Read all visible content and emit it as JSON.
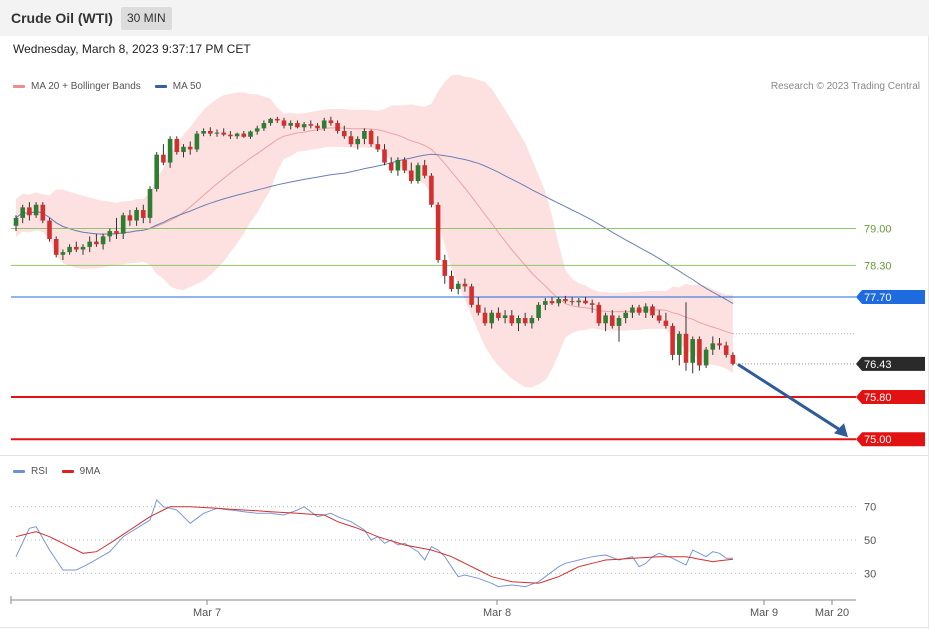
{
  "header": {
    "title": "Crude Oil (WTI)",
    "interval": "30 MIN"
  },
  "timestamp": "Wednesday, March 8, 2023 9:37:17 PM CET",
  "legend_main": [
    {
      "label": "MA 20 + Bollinger Bands",
      "color": "#f28b8b"
    },
    {
      "label": "MA 50",
      "color": "#3b5f9a"
    }
  ],
  "legend_rsi": [
    {
      "label": "RSI",
      "color": "#6e8fd6"
    },
    {
      "label": "9MA",
      "color": "#e02020"
    }
  ],
  "credit": "Research © 2023 Trading Central",
  "chart_data": [
    {
      "type": "candlestick",
      "ylim": [
        74.7,
        81.4
      ],
      "current_price": "76.43",
      "levels": [
        {
          "value": 79.0,
          "label": "79.00",
          "kind": "line",
          "color": "#8fc46a"
        },
        {
          "value": 78.3,
          "label": "78.30",
          "kind": "line",
          "color": "#8fc46a"
        },
        {
          "value": 77.7,
          "label": "77.70",
          "kind": "tag",
          "color": "#1e6be0"
        },
        {
          "value": 75.8,
          "label": "75.80",
          "kind": "tag",
          "color": "#e31212"
        },
        {
          "value": 75.0,
          "label": "75.00",
          "kind": "tag",
          "color": "#e31212"
        }
      ],
      "projection": {
        "from_price": 76.42,
        "to_price": 75.0,
        "color": "#2f5b9a"
      },
      "x_ticks": [
        "Mar 7",
        "Mar 8",
        "Mar 9",
        "Mar 20"
      ],
      "candles": [
        [
          79.05,
          79.25,
          78.95,
          79.2
        ],
        [
          79.2,
          79.45,
          79.1,
          79.4
        ],
        [
          79.4,
          79.5,
          79.15,
          79.25
        ],
        [
          79.25,
          79.5,
          79.2,
          79.45
        ],
        [
          79.45,
          79.5,
          79.1,
          79.15
        ],
        [
          79.15,
          79.2,
          78.75,
          78.8
        ],
        [
          78.8,
          78.85,
          78.45,
          78.5
        ],
        [
          78.5,
          78.6,
          78.4,
          78.55
        ],
        [
          78.55,
          78.7,
          78.5,
          78.65
        ],
        [
          78.65,
          78.75,
          78.55,
          78.6
        ],
        [
          78.6,
          78.7,
          78.5,
          78.65
        ],
        [
          78.65,
          78.85,
          78.55,
          78.75
        ],
        [
          78.75,
          78.9,
          78.65,
          78.7
        ],
        [
          78.7,
          78.9,
          78.6,
          78.85
        ],
        [
          78.85,
          79.0,
          78.75,
          78.95
        ],
        [
          78.95,
          79.2,
          78.8,
          78.9
        ],
        [
          78.9,
          79.3,
          78.8,
          79.25
        ],
        [
          79.25,
          79.35,
          79.05,
          79.15
        ],
        [
          79.15,
          79.4,
          79.05,
          79.35
        ],
        [
          79.35,
          79.45,
          79.1,
          79.2
        ],
        [
          79.2,
          79.8,
          79.1,
          79.75
        ],
        [
          79.75,
          80.45,
          79.7,
          80.4
        ],
        [
          80.4,
          80.6,
          80.2,
          80.25
        ],
        [
          80.25,
          80.75,
          80.15,
          80.7
        ],
        [
          80.7,
          80.75,
          80.4,
          80.45
        ],
        [
          80.45,
          80.6,
          80.35,
          80.55
        ],
        [
          80.55,
          80.65,
          80.4,
          80.5
        ],
        [
          80.5,
          80.85,
          80.45,
          80.8
        ],
        [
          80.8,
          80.9,
          80.75,
          80.85
        ],
        [
          80.85,
          80.92,
          80.75,
          80.8
        ],
        [
          80.8,
          80.88,
          80.74,
          80.82
        ],
        [
          80.82,
          80.9,
          80.75,
          80.78
        ],
        [
          80.78,
          80.85,
          80.7,
          80.75
        ],
        [
          80.75,
          80.82,
          80.7,
          80.8
        ],
        [
          80.8,
          80.85,
          80.72,
          80.74
        ],
        [
          80.74,
          80.86,
          80.7,
          80.84
        ],
        [
          80.84,
          80.95,
          80.78,
          80.9
        ],
        [
          80.9,
          81.05,
          80.85,
          81.0
        ],
        [
          81.0,
          81.1,
          80.95,
          81.08
        ],
        [
          81.08,
          81.12,
          81.0,
          81.05
        ],
        [
          81.05,
          81.1,
          80.9,
          80.95
        ],
        [
          80.95,
          81.05,
          80.88,
          81.0
        ],
        [
          81.0,
          81.05,
          80.9,
          80.92
        ],
        [
          80.92,
          81.02,
          80.85,
          80.98
        ],
        [
          80.98,
          81.05,
          80.9,
          80.95
        ],
        [
          80.95,
          81.0,
          80.85,
          80.9
        ],
        [
          80.9,
          81.1,
          80.85,
          81.05
        ],
        [
          81.05,
          81.12,
          80.95,
          81.0
        ],
        [
          81.0,
          81.05,
          80.8,
          80.85
        ],
        [
          80.85,
          80.95,
          80.7,
          80.75
        ],
        [
          80.75,
          80.85,
          80.55,
          80.6
        ],
        [
          80.6,
          80.75,
          80.5,
          80.7
        ],
        [
          80.7,
          80.9,
          80.6,
          80.85
        ],
        [
          80.85,
          80.88,
          80.55,
          80.6
        ],
        [
          80.6,
          80.75,
          80.45,
          80.5
        ],
        [
          80.5,
          80.6,
          80.2,
          80.25
        ],
        [
          80.25,
          80.35,
          80.05,
          80.1
        ],
        [
          80.1,
          80.35,
          80.0,
          80.3
        ],
        [
          80.3,
          80.35,
          80.05,
          80.1
        ],
        [
          80.1,
          80.25,
          79.85,
          79.9
        ],
        [
          79.9,
          80.25,
          79.85,
          80.2
        ],
        [
          80.2,
          80.3,
          79.95,
          80.0
        ],
        [
          80.0,
          80.05,
          79.4,
          79.45
        ],
        [
          79.45,
          79.5,
          78.35,
          78.4
        ],
        [
          78.4,
          78.5,
          77.95,
          78.1
        ],
        [
          78.1,
          78.2,
          77.8,
          77.85
        ],
        [
          77.85,
          78.0,
          77.75,
          77.95
        ],
        [
          77.95,
          78.05,
          77.8,
          77.9
        ],
        [
          77.9,
          77.95,
          77.5,
          77.55
        ],
        [
          77.55,
          77.7,
          77.35,
          77.4
        ],
        [
          77.4,
          77.5,
          77.15,
          77.2
        ],
        [
          77.2,
          77.45,
          77.1,
          77.4
        ],
        [
          77.4,
          77.5,
          77.25,
          77.3
        ],
        [
          77.3,
          77.45,
          77.2,
          77.35
        ],
        [
          77.35,
          77.45,
          77.15,
          77.2
        ],
        [
          77.2,
          77.35,
          77.05,
          77.3
        ],
        [
          77.3,
          77.4,
          77.15,
          77.2
        ],
        [
          77.2,
          77.35,
          77.1,
          77.3
        ],
        [
          77.3,
          77.6,
          77.25,
          77.55
        ],
        [
          77.55,
          77.68,
          77.45,
          77.62
        ],
        [
          77.62,
          77.7,
          77.55,
          77.58
        ],
        [
          77.58,
          77.7,
          77.52,
          77.66
        ],
        [
          77.66,
          77.72,
          77.58,
          77.62
        ],
        [
          77.62,
          77.7,
          77.55,
          77.6
        ],
        [
          77.6,
          77.68,
          77.52,
          77.63
        ],
        [
          77.63,
          77.7,
          77.56,
          77.58
        ],
        [
          77.58,
          77.65,
          77.4,
          77.55
        ],
        [
          77.55,
          77.6,
          77.15,
          77.2
        ],
        [
          77.2,
          77.4,
          77.05,
          77.35
        ],
        [
          77.35,
          77.45,
          77.1,
          77.15
        ],
        [
          77.15,
          77.35,
          76.85,
          77.3
        ],
        [
          77.3,
          77.45,
          77.2,
          77.4
        ],
        [
          77.4,
          77.55,
          77.3,
          77.5
        ],
        [
          77.5,
          77.55,
          77.35,
          77.4
        ],
        [
          77.4,
          77.58,
          77.3,
          77.52
        ],
        [
          77.52,
          77.56,
          77.3,
          77.35
        ],
        [
          77.35,
          77.45,
          77.2,
          77.25
        ],
        [
          77.25,
          77.4,
          77.1,
          77.15
        ],
        [
          77.15,
          77.2,
          76.5,
          76.6
        ],
        [
          76.6,
          77.05,
          76.4,
          77.0
        ],
        [
          77.0,
          77.6,
          76.3,
          76.45
        ],
        [
          76.45,
          76.95,
          76.25,
          76.9
        ],
        [
          76.9,
          76.95,
          76.3,
          76.4
        ],
        [
          76.4,
          76.75,
          76.35,
          76.7
        ],
        [
          76.7,
          76.95,
          76.6,
          76.82
        ],
        [
          76.82,
          76.92,
          76.7,
          76.78
        ],
        [
          76.78,
          76.85,
          76.55,
          76.6
        ],
        [
          76.6,
          76.65,
          76.4,
          76.43
        ]
      ]
    },
    {
      "type": "line",
      "title": "RSI",
      "ylim": [
        20,
        80
      ],
      "y_ticks": [
        30,
        50,
        70
      ],
      "rsi_anchors": [
        [
          0,
          40
        ],
        [
          2,
          57
        ],
        [
          3,
          58
        ],
        [
          5,
          44
        ],
        [
          7,
          32
        ],
        [
          9,
          32
        ],
        [
          11,
          36
        ],
        [
          14,
          43
        ],
        [
          16,
          52
        ],
        [
          18,
          57
        ],
        [
          20,
          62
        ],
        [
          21,
          74
        ],
        [
          22,
          70
        ],
        [
          24,
          68
        ],
        [
          26,
          60
        ],
        [
          28,
          66
        ],
        [
          30,
          69
        ],
        [
          32,
          68
        ],
        [
          34,
          67
        ],
        [
          36,
          66
        ],
        [
          38,
          66
        ],
        [
          40,
          65
        ],
        [
          42,
          68
        ],
        [
          43,
          70
        ],
        [
          45,
          64
        ],
        [
          47,
          66
        ],
        [
          48,
          64
        ],
        [
          50,
          61
        ],
        [
          52,
          56
        ],
        [
          53,
          50
        ],
        [
          54,
          52
        ],
        [
          55,
          48
        ],
        [
          56,
          50
        ],
        [
          57,
          47
        ],
        [
          58,
          48
        ],
        [
          60,
          43
        ],
        [
          61,
          38
        ],
        [
          62,
          46
        ],
        [
          63,
          44
        ],
        [
          64,
          40
        ],
        [
          65,
          34
        ],
        [
          66,
          28
        ],
        [
          67,
          29
        ],
        [
          69,
          27
        ],
        [
          71,
          24
        ],
        [
          72,
          22
        ],
        [
          74,
          23
        ],
        [
          76,
          22
        ],
        [
          78,
          25
        ],
        [
          80,
          31
        ],
        [
          81,
          34
        ],
        [
          82,
          36
        ],
        [
          84,
          38
        ],
        [
          86,
          40
        ],
        [
          88,
          41
        ],
        [
          90,
          38
        ],
        [
          92,
          40
        ],
        [
          93,
          34
        ],
        [
          94,
          36
        ],
        [
          95,
          40
        ],
        [
          96,
          42
        ],
        [
          98,
          39
        ],
        [
          100,
          35
        ],
        [
          101,
          44
        ],
        [
          103,
          40
        ],
        [
          104,
          43
        ],
        [
          105,
          42
        ],
        [
          106,
          39
        ],
        [
          108,
          39
        ]
      ],
      "ma_anchors": [
        [
          0,
          52
        ],
        [
          3,
          55
        ],
        [
          5,
          52
        ],
        [
          8,
          46
        ],
        [
          10,
          42
        ],
        [
          12,
          43
        ],
        [
          14,
          48
        ],
        [
          17,
          56
        ],
        [
          20,
          64
        ],
        [
          23,
          70
        ],
        [
          26,
          70
        ],
        [
          30,
          69
        ],
        [
          34,
          68
        ],
        [
          38,
          67
        ],
        [
          42,
          66
        ],
        [
          46,
          65
        ],
        [
          48,
          61
        ],
        [
          51,
          57
        ],
        [
          54,
          52
        ],
        [
          58,
          47
        ],
        [
          62,
          44
        ],
        [
          65,
          40
        ],
        [
          68,
          34
        ],
        [
          71,
          28
        ],
        [
          74,
          25
        ],
        [
          78,
          24
        ],
        [
          81,
          28
        ],
        [
          84,
          34
        ],
        [
          88,
          38
        ],
        [
          92,
          39
        ],
        [
          96,
          40
        ],
        [
          100,
          40
        ],
        [
          104,
          37
        ],
        [
          108,
          39
        ]
      ]
    }
  ]
}
